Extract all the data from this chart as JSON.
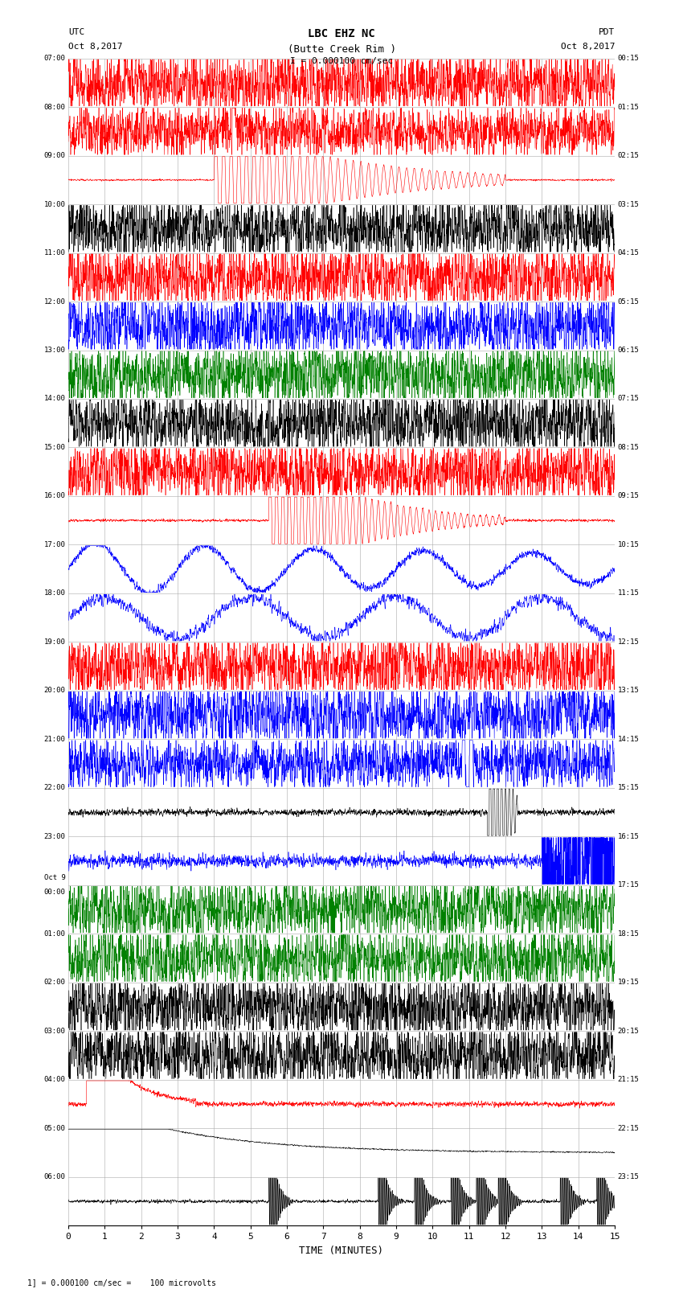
{
  "title_line1": "LBC EHZ NC",
  "title_line2": "(Butte Creek Rim )",
  "scale_text": "I = 0.000100 cm/sec",
  "utc_label": "UTC",
  "pdt_label": "PDT",
  "date_left": "Oct 8,2017",
  "date_right": "Oct 8,2017",
  "xlabel": "TIME (MINUTES)",
  "footnote": "1] = 0.000100 cm/sec =    100 microvolts",
  "left_times": [
    "07:00",
    "08:00",
    "09:00",
    "10:00",
    "11:00",
    "12:00",
    "13:00",
    "14:00",
    "15:00",
    "16:00",
    "17:00",
    "18:00",
    "19:00",
    "20:00",
    "21:00",
    "22:00",
    "23:00",
    "Oct 9",
    "00:00",
    "01:00",
    "02:00",
    "03:00",
    "04:00",
    "05:00",
    "06:00"
  ],
  "right_times": [
    "00:15",
    "01:15",
    "02:15",
    "03:15",
    "04:15",
    "05:15",
    "06:15",
    "07:15",
    "08:15",
    "09:15",
    "10:15",
    "11:15",
    "12:15",
    "13:15",
    "14:15",
    "15:15",
    "16:15",
    "17:15",
    "18:15",
    "19:15",
    "20:15",
    "21:15",
    "22:15",
    "23:15"
  ],
  "n_rows": 24,
  "minutes_per_row": 15,
  "bg_color": "#ffffff",
  "grid_color": "#aaaaaa",
  "trace_colors": [
    "red",
    "blue",
    "green",
    "black"
  ],
  "figsize": [
    8.5,
    16.13
  ],
  "dpi": 100
}
